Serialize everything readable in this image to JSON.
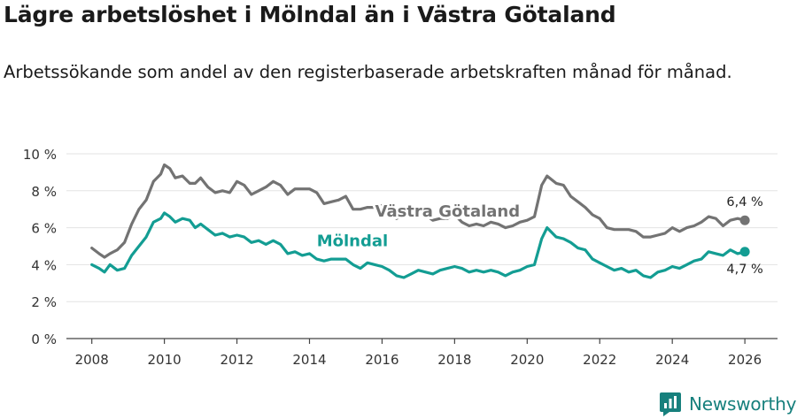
{
  "title": "Lägre arbetslöshet i Mölndal än i Västra Götaland",
  "subtitle": "Arbetssökande som andel av den registerbaserade arbetskraften månad för månad.",
  "brand": {
    "name": "Newsworthy",
    "icon": "newsworthy-logo-icon"
  },
  "colors": {
    "vg": "#737373",
    "moln": "#139d93",
    "grid": "#e3e3e3",
    "axis": "#444444",
    "brand": "#17807d"
  },
  "chart_data": {
    "type": "line",
    "title": "Lägre arbetslöshet i Mölndal än i Västra Götaland",
    "xlabel": "",
    "ylabel": "",
    "xlim": [
      2007.3,
      2026.9
    ],
    "ylim": [
      0,
      10
    ],
    "x_ticks": [
      2008,
      2010,
      2012,
      2014,
      2016,
      2018,
      2020,
      2022,
      2024,
      2026
    ],
    "y_ticks": [
      {
        "value": 0,
        "label": "0 %"
      },
      {
        "value": 2,
        "label": "2 %"
      },
      {
        "value": 4,
        "label": "4 %"
      },
      {
        "value": 6,
        "label": "6 %"
      },
      {
        "value": 8,
        "label": "8 %"
      },
      {
        "value": 10,
        "label": "10 %"
      }
    ],
    "grid": true,
    "series": [
      {
        "key": "vg",
        "name": "Västra Götaland",
        "end_label": "6,4 %",
        "points": [
          [
            2008.0,
            4.9
          ],
          [
            2008.2,
            4.6
          ],
          [
            2008.35,
            4.4
          ],
          [
            2008.5,
            4.6
          ],
          [
            2008.7,
            4.8
          ],
          [
            2008.9,
            5.2
          ],
          [
            2009.1,
            6.2
          ],
          [
            2009.3,
            7.0
          ],
          [
            2009.5,
            7.5
          ],
          [
            2009.7,
            8.5
          ],
          [
            2009.9,
            8.9
          ],
          [
            2010.0,
            9.4
          ],
          [
            2010.15,
            9.2
          ],
          [
            2010.3,
            8.7
          ],
          [
            2010.5,
            8.8
          ],
          [
            2010.7,
            8.4
          ],
          [
            2010.85,
            8.4
          ],
          [
            2011.0,
            8.7
          ],
          [
            2011.2,
            8.2
          ],
          [
            2011.4,
            7.9
          ],
          [
            2011.6,
            8.0
          ],
          [
            2011.8,
            7.9
          ],
          [
            2012.0,
            8.5
          ],
          [
            2012.2,
            8.3
          ],
          [
            2012.4,
            7.8
          ],
          [
            2012.6,
            8.0
          ],
          [
            2012.8,
            8.2
          ],
          [
            2013.0,
            8.5
          ],
          [
            2013.2,
            8.3
          ],
          [
            2013.4,
            7.8
          ],
          [
            2013.6,
            8.1
          ],
          [
            2013.8,
            8.1
          ],
          [
            2014.0,
            8.1
          ],
          [
            2014.2,
            7.9
          ],
          [
            2014.4,
            7.3
          ],
          [
            2014.6,
            7.4
          ],
          [
            2014.8,
            7.5
          ],
          [
            2015.0,
            7.7
          ],
          [
            2015.2,
            7.0
          ],
          [
            2015.4,
            7.0
          ],
          [
            2015.6,
            7.1
          ],
          [
            2015.8,
            7.1
          ],
          [
            2016.0,
            7.2
          ],
          [
            2016.2,
            6.9
          ],
          [
            2016.4,
            6.5
          ],
          [
            2016.6,
            6.7
          ],
          [
            2016.8,
            6.8
          ],
          [
            2017.0,
            6.9
          ],
          [
            2017.2,
            6.7
          ],
          [
            2017.4,
            6.4
          ],
          [
            2017.6,
            6.5
          ],
          [
            2017.8,
            6.5
          ],
          [
            2018.0,
            6.7
          ],
          [
            2018.2,
            6.3
          ],
          [
            2018.4,
            6.1
          ],
          [
            2018.6,
            6.2
          ],
          [
            2018.8,
            6.1
          ],
          [
            2019.0,
            6.3
          ],
          [
            2019.2,
            6.2
          ],
          [
            2019.4,
            6.0
          ],
          [
            2019.6,
            6.1
          ],
          [
            2019.8,
            6.3
          ],
          [
            2020.0,
            6.4
          ],
          [
            2020.2,
            6.6
          ],
          [
            2020.4,
            8.3
          ],
          [
            2020.55,
            8.8
          ],
          [
            2020.8,
            8.4
          ],
          [
            2021.0,
            8.3
          ],
          [
            2021.2,
            7.7
          ],
          [
            2021.4,
            7.4
          ],
          [
            2021.6,
            7.1
          ],
          [
            2021.8,
            6.7
          ],
          [
            2022.0,
            6.5
          ],
          [
            2022.2,
            6.0
          ],
          [
            2022.4,
            5.9
          ],
          [
            2022.6,
            5.9
          ],
          [
            2022.8,
            5.9
          ],
          [
            2023.0,
            5.8
          ],
          [
            2023.2,
            5.5
          ],
          [
            2023.4,
            5.5
          ],
          [
            2023.6,
            5.6
          ],
          [
            2023.8,
            5.7
          ],
          [
            2024.0,
            6.0
          ],
          [
            2024.2,
            5.8
          ],
          [
            2024.4,
            6.0
          ],
          [
            2024.6,
            6.1
          ],
          [
            2024.8,
            6.3
          ],
          [
            2025.0,
            6.6
          ],
          [
            2025.2,
            6.5
          ],
          [
            2025.4,
            6.1
          ],
          [
            2025.6,
            6.4
          ],
          [
            2025.8,
            6.5
          ],
          [
            2026.0,
            6.4
          ]
        ]
      },
      {
        "key": "moln",
        "name": "Mölndal",
        "end_label": "4,7 %",
        "points": [
          [
            2008.0,
            4.0
          ],
          [
            2008.2,
            3.8
          ],
          [
            2008.35,
            3.6
          ],
          [
            2008.5,
            4.0
          ],
          [
            2008.7,
            3.7
          ],
          [
            2008.9,
            3.8
          ],
          [
            2009.1,
            4.5
          ],
          [
            2009.3,
            5.0
          ],
          [
            2009.5,
            5.5
          ],
          [
            2009.7,
            6.3
          ],
          [
            2009.9,
            6.5
          ],
          [
            2010.0,
            6.8
          ],
          [
            2010.15,
            6.6
          ],
          [
            2010.3,
            6.3
          ],
          [
            2010.5,
            6.5
          ],
          [
            2010.7,
            6.4
          ],
          [
            2010.85,
            6.0
          ],
          [
            2011.0,
            6.2
          ],
          [
            2011.2,
            5.9
          ],
          [
            2011.4,
            5.6
          ],
          [
            2011.6,
            5.7
          ],
          [
            2011.8,
            5.5
          ],
          [
            2012.0,
            5.6
          ],
          [
            2012.2,
            5.5
          ],
          [
            2012.4,
            5.2
          ],
          [
            2012.6,
            5.3
          ],
          [
            2012.8,
            5.1
          ],
          [
            2013.0,
            5.3
          ],
          [
            2013.2,
            5.1
          ],
          [
            2013.4,
            4.6
          ],
          [
            2013.6,
            4.7
          ],
          [
            2013.8,
            4.5
          ],
          [
            2014.0,
            4.6
          ],
          [
            2014.2,
            4.3
          ],
          [
            2014.4,
            4.2
          ],
          [
            2014.6,
            4.3
          ],
          [
            2014.8,
            4.3
          ],
          [
            2015.0,
            4.3
          ],
          [
            2015.2,
            4.0
          ],
          [
            2015.4,
            3.8
          ],
          [
            2015.6,
            4.1
          ],
          [
            2015.8,
            4.0
          ],
          [
            2016.0,
            3.9
          ],
          [
            2016.2,
            3.7
          ],
          [
            2016.4,
            3.4
          ],
          [
            2016.6,
            3.3
          ],
          [
            2016.8,
            3.5
          ],
          [
            2017.0,
            3.7
          ],
          [
            2017.2,
            3.6
          ],
          [
            2017.4,
            3.5
          ],
          [
            2017.6,
            3.7
          ],
          [
            2017.8,
            3.8
          ],
          [
            2018.0,
            3.9
          ],
          [
            2018.2,
            3.8
          ],
          [
            2018.4,
            3.6
          ],
          [
            2018.6,
            3.7
          ],
          [
            2018.8,
            3.6
          ],
          [
            2019.0,
            3.7
          ],
          [
            2019.2,
            3.6
          ],
          [
            2019.4,
            3.4
          ],
          [
            2019.6,
            3.6
          ],
          [
            2019.8,
            3.7
          ],
          [
            2020.0,
            3.9
          ],
          [
            2020.2,
            4.0
          ],
          [
            2020.4,
            5.4
          ],
          [
            2020.55,
            6.0
          ],
          [
            2020.8,
            5.5
          ],
          [
            2021.0,
            5.4
          ],
          [
            2021.2,
            5.2
          ],
          [
            2021.4,
            4.9
          ],
          [
            2021.6,
            4.8
          ],
          [
            2021.8,
            4.3
          ],
          [
            2022.0,
            4.1
          ],
          [
            2022.2,
            3.9
          ],
          [
            2022.4,
            3.7
          ],
          [
            2022.6,
            3.8
          ],
          [
            2022.8,
            3.6
          ],
          [
            2023.0,
            3.7
          ],
          [
            2023.2,
            3.4
          ],
          [
            2023.4,
            3.3
          ],
          [
            2023.6,
            3.6
          ],
          [
            2023.8,
            3.7
          ],
          [
            2024.0,
            3.9
          ],
          [
            2024.2,
            3.8
          ],
          [
            2024.4,
            4.0
          ],
          [
            2024.6,
            4.2
          ],
          [
            2024.8,
            4.3
          ],
          [
            2025.0,
            4.7
          ],
          [
            2025.2,
            4.6
          ],
          [
            2025.4,
            4.5
          ],
          [
            2025.6,
            4.8
          ],
          [
            2025.8,
            4.6
          ],
          [
            2026.0,
            4.7
          ]
        ]
      }
    ],
    "annotations": [
      {
        "series": "vg",
        "text": "Västra Götaland",
        "x": 2019.8,
        "y": 6.6
      },
      {
        "series": "moln",
        "text": "Mölndal",
        "x": 2014.2,
        "y": 5.0
      }
    ]
  }
}
